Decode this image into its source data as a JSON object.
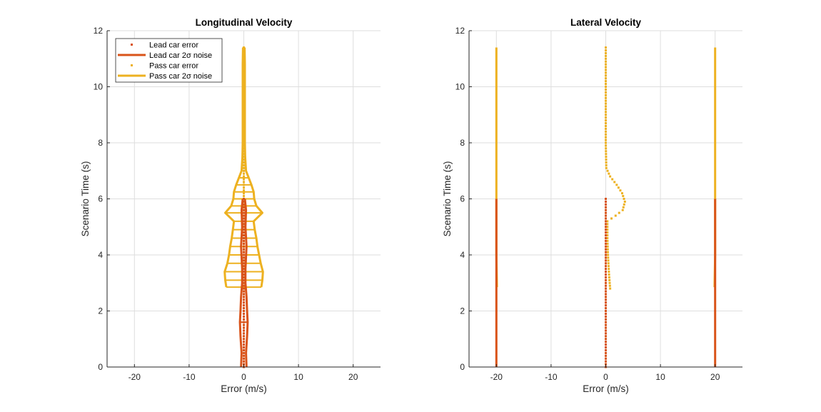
{
  "colors": {
    "lead": "#D95319",
    "pass": "#EDB120",
    "grid": "#DEDEDE",
    "axis": "#262626"
  },
  "chart_data": [
    {
      "type": "scatter",
      "title": "Longitudinal Velocity",
      "xlabel": "Error (m/s)",
      "ylabel": "Scenario Time (s)",
      "xlim": [
        -25,
        25
      ],
      "ylim": [
        0,
        12
      ],
      "xticks": [
        -20,
        -10,
        0,
        10,
        20
      ],
      "xtick_labels": [
        "-20",
        "-10",
        "0",
        "10",
        "20"
      ],
      "yticks": [
        0,
        2,
        4,
        6,
        8,
        10,
        12
      ],
      "ytick_labels": [
        "0",
        "2",
        "4",
        "6",
        "8",
        "10",
        "12"
      ],
      "grid": true,
      "legend": {
        "location": "top-left",
        "entries": [
          {
            "label": "Lead car error",
            "style": "marker",
            "color_key": "lead"
          },
          {
            "label": "Lead car 2σ noise",
            "style": "line",
            "color_key": "lead"
          },
          {
            "label": "Pass car error",
            "style": "marker",
            "color_key": "pass"
          },
          {
            "label": "Pass car 2σ noise",
            "style": "line",
            "color_key": "pass"
          }
        ]
      },
      "series": [
        {
          "name": "Pass car 2σ noise",
          "kind": "bounds",
          "color_key": "pass",
          "points": [
            [
              -3.2,
              2.85,
              3.2
            ],
            [
              -3.4,
              3.1,
              3.4
            ],
            [
              -3.5,
              3.4,
              3.5
            ],
            [
              -3.0,
              3.7,
              3.1
            ],
            [
              -2.7,
              4.0,
              2.8
            ],
            [
              -2.5,
              4.3,
              2.5
            ],
            [
              -2.2,
              4.6,
              2.3
            ],
            [
              -2.0,
              4.9,
              2.0
            ],
            [
              -1.8,
              5.2,
              1.8
            ],
            [
              -3.4,
              5.5,
              3.4
            ],
            [
              -2.3,
              5.75,
              2.3
            ],
            [
              -1.9,
              6.0,
              1.9
            ],
            [
              -1.8,
              6.25,
              1.8
            ],
            [
              -1.4,
              6.5,
              1.4
            ],
            [
              -0.9,
              6.75,
              0.9
            ],
            [
              -0.4,
              7.0,
              0.4
            ],
            [
              -0.25,
              7.5,
              0.25
            ],
            [
              -0.2,
              8.0,
              0.2
            ],
            [
              -0.2,
              9.0,
              0.2
            ],
            [
              -0.2,
              10.0,
              0.2
            ],
            [
              -0.2,
              10.8,
              0.2
            ],
            [
              -0.15,
              11.4,
              0.15
            ]
          ]
        },
        {
          "name": "Lead car 2σ noise",
          "kind": "bounds",
          "color_key": "lead",
          "points": [
            [
              -0.5,
              0.0,
              0.5
            ],
            [
              -0.4,
              0.5,
              0.4
            ],
            [
              -0.6,
              1.1,
              0.6
            ],
            [
              -0.7,
              1.6,
              0.7
            ],
            [
              -0.6,
              2.0,
              0.6
            ],
            [
              -0.5,
              2.5,
              0.5
            ],
            [
              -0.3,
              3.0,
              0.3
            ],
            [
              -0.3,
              3.5,
              0.3
            ],
            [
              -0.5,
              4.3,
              0.5
            ],
            [
              -0.3,
              5.0,
              0.3
            ],
            [
              -0.4,
              5.6,
              0.4
            ],
            [
              -0.2,
              6.0,
              0.2
            ]
          ]
        },
        {
          "name": "Pass car error",
          "kind": "points",
          "color_key": "pass",
          "t_start": 2.8,
          "t_end": 11.4,
          "dt": 0.1,
          "x_values": [
            0.0
          ]
        },
        {
          "name": "Lead car error",
          "kind": "points",
          "color_key": "lead",
          "t_start": 0.0,
          "t_end": 6.0,
          "dt": 0.1,
          "x_values": [
            0.0
          ]
        }
      ]
    },
    {
      "type": "scatter",
      "title": "Lateral Velocity",
      "xlabel": "Error (m/s)",
      "ylabel": "Scenario Time (s)",
      "xlim": [
        -25,
        25
      ],
      "ylim": [
        0,
        12
      ],
      "xticks": [
        -20,
        -10,
        0,
        10,
        20
      ],
      "xtick_labels": [
        "-20",
        "-10",
        "0",
        "10",
        "20"
      ],
      "yticks": [
        0,
        2,
        4,
        6,
        8,
        10,
        12
      ],
      "ytick_labels": [
        "0",
        "2",
        "4",
        "6",
        "8",
        "10",
        "12"
      ],
      "grid": true,
      "series": [
        {
          "name": "Pass car 2σ noise",
          "kind": "bounds",
          "color_key": "pass",
          "points": [
            [
              -19.9,
              2.85,
              19.9
            ],
            [
              -20.0,
              4.0,
              20.0
            ],
            [
              -20.0,
              6.0,
              20.0
            ],
            [
              -20.0,
              8.0,
              20.0
            ],
            [
              -20.0,
              11.4,
              20.0
            ]
          ]
        },
        {
          "name": "Lead car 2σ noise",
          "kind": "bounds",
          "color_key": "lead",
          "points": [
            [
              -20.0,
              0.0,
              20.0
            ],
            [
              -20.0,
              3.0,
              20.0
            ],
            [
              -20.0,
              6.0,
              20.0
            ]
          ]
        },
        {
          "name": "Pass car error",
          "kind": "curve",
          "color_key": "pass",
          "dt": 0.1,
          "knots": [
            [
              0.8,
              2.8
            ],
            [
              0.6,
              3.3
            ],
            [
              0.4,
              4.0
            ],
            [
              0.3,
              4.6
            ],
            [
              0.3,
              5.2
            ],
            [
              1.8,
              5.4
            ],
            [
              3.1,
              5.6
            ],
            [
              3.5,
              5.9
            ],
            [
              3.0,
              6.2
            ],
            [
              2.0,
              6.5
            ],
            [
              0.8,
              6.8
            ],
            [
              0.1,
              7.1
            ],
            [
              0.0,
              8.0
            ],
            [
              0.0,
              11.4
            ]
          ]
        },
        {
          "name": "Lead car error",
          "kind": "points",
          "color_key": "lead",
          "t_start": 0.0,
          "t_end": 6.0,
          "dt": 0.1,
          "x_values": [
            0.0
          ]
        }
      ]
    }
  ]
}
